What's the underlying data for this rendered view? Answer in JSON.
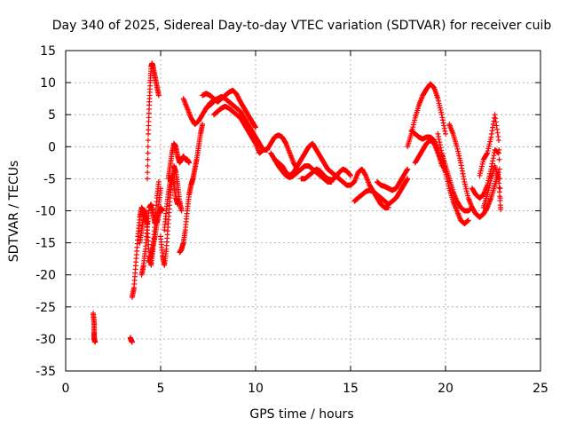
{
  "chart_data": {
    "type": "scatter",
    "title": "Day 340 of 2025, Sidereal Day-to-day VTEC variation (SDTVAR) for receiver cuib",
    "xlabel": "GPS time / hours",
    "ylabel": "SDTVAR / TECUs",
    "xlim": [
      0,
      25
    ],
    "ylim": [
      -35,
      15
    ],
    "xticks": [
      "0",
      "5",
      "10",
      "15",
      "20",
      "25"
    ],
    "yticks": [
      "15",
      "10",
      "5",
      "0",
      "-5",
      "-10",
      "-15",
      "-20",
      "-25",
      "-30",
      "-35"
    ],
    "grid": true,
    "marker": "plus",
    "color": "#ff0000",
    "series": [
      {
        "name": "arc-1",
        "x": [
          1.45,
          1.5,
          1.5,
          1.5,
          1.55
        ],
        "y": [
          -26.0,
          -27.5,
          -29.0,
          -30.0,
          -30.5
        ]
      },
      {
        "name": "arc-2",
        "x": [
          3.4,
          3.45,
          3.5
        ],
        "y": [
          -29.8,
          -30.2,
          -30.5
        ]
      },
      {
        "name": "arc-3",
        "x": [
          3.5,
          3.6,
          3.7,
          3.8,
          3.9,
          4.0,
          4.1,
          4.2,
          4.3
        ],
        "y": [
          -23.5,
          -22.0,
          -18.0,
          -14.0,
          -11.0,
          -9.5,
          -10.0,
          -11.0,
          -12.0
        ]
      },
      {
        "name": "arc-4",
        "x": [
          4.3,
          4.35,
          4.4,
          4.45,
          4.5,
          4.55,
          4.6,
          4.7,
          4.8,
          4.9
        ],
        "y": [
          -5.0,
          2.0,
          6.5,
          10.0,
          12.5,
          13.0,
          12.5,
          11.0,
          9.5,
          8.0
        ]
      },
      {
        "name": "arc-5",
        "x": [
          3.9,
          4.0,
          4.1,
          4.2,
          4.3,
          4.4,
          4.5,
          4.6,
          4.7,
          4.8,
          4.9
        ],
        "y": [
          -15.0,
          -13.0,
          -11.0,
          -10.0,
          -13.0,
          -17.0,
          -18.5,
          -16.0,
          -12.0,
          -8.0,
          -5.5
        ]
      },
      {
        "name": "arc-6",
        "x": [
          4.0,
          4.1,
          4.2,
          4.3,
          4.4,
          4.5,
          4.6,
          4.7,
          4.8,
          4.9,
          5.0
        ],
        "y": [
          -20.0,
          -18.5,
          -16.0,
          -12.5,
          -9.5,
          -9.0,
          -10.5,
          -12.0,
          -11.5,
          -9.0,
          -6.5
        ]
      },
      {
        "name": "arc-7",
        "x": [
          4.4,
          4.5,
          4.6,
          4.7,
          4.8,
          4.9,
          5.0,
          5.1
        ],
        "y": [
          -18.0,
          -17.0,
          -15.5,
          -14.0,
          -12.0,
          -10.5,
          -9.5,
          -10.0
        ]
      },
      {
        "name": "arc-8",
        "x": [
          5.0,
          5.1,
          5.2,
          5.3,
          5.4,
          5.5,
          5.6,
          5.7,
          5.8,
          5.9,
          6.0,
          6.1
        ],
        "y": [
          -14.0,
          -17.0,
          -18.5,
          -16.0,
          -12.0,
          -8.0,
          -5.0,
          -3.0,
          -4.0,
          -6.0,
          -8.5,
          -10.0
        ]
      },
      {
        "name": "arc-9",
        "x": [
          5.2,
          5.3,
          5.4,
          5.5,
          5.6,
          5.7,
          5.8,
          5.9
        ],
        "y": [
          -13.0,
          -10.0,
          -7.5,
          -5.5,
          -4.5,
          -6.0,
          -8.0,
          -9.0
        ]
      },
      {
        "name": "arc-10",
        "x": [
          5.4,
          5.5,
          5.6,
          5.7,
          5.8,
          5.9,
          6.0,
          6.1,
          6.2,
          6.3,
          6.4,
          6.5
        ],
        "y": [
          -5.0,
          -3.0,
          -1.0,
          0.5,
          0.0,
          -1.5,
          -2.5,
          -2.0,
          -1.5,
          -2.0,
          -2.0,
          -2.5
        ]
      },
      {
        "name": "arc-11",
        "x": [
          6.0,
          6.1,
          6.2,
          6.3,
          6.4,
          6.5,
          6.6,
          6.7,
          6.8,
          6.9,
          7.0,
          7.1,
          7.2
        ],
        "y": [
          -16.5,
          -16.0,
          -15.0,
          -13.0,
          -10.0,
          -7.5,
          -6.0,
          -5.0,
          -3.5,
          -2.0,
          0.0,
          2.0,
          3.5
        ]
      },
      {
        "name": "arc-12",
        "x": [
          6.2,
          6.4,
          6.6,
          6.8,
          7.0,
          7.2,
          7.4,
          7.6,
          7.8
        ],
        "y": [
          7.5,
          6.0,
          4.5,
          3.5,
          4.0,
          5.0,
          6.0,
          6.5,
          7.0
        ]
      },
      {
        "name": "arc-13",
        "x": [
          7.2,
          7.4,
          7.6,
          7.8,
          8.0,
          8.2,
          8.4,
          8.6,
          8.8,
          9.0,
          9.2,
          9.4,
          9.6,
          9.8,
          10.0
        ],
        "y": [
          8.0,
          8.3,
          8.0,
          7.5,
          7.0,
          7.5,
          8.0,
          8.5,
          8.8,
          8.2,
          7.0,
          6.0,
          5.0,
          4.0,
          3.0
        ]
      },
      {
        "name": "arc-14",
        "x": [
          7.4,
          7.6,
          7.8,
          8.0,
          8.2,
          8.4,
          8.6,
          8.8,
          9.0,
          9.2,
          9.4,
          9.6,
          9.8,
          10.0,
          10.2,
          10.4
        ],
        "y": [
          6.0,
          6.8,
          7.2,
          7.5,
          7.8,
          7.5,
          7.0,
          6.5,
          6.0,
          5.5,
          4.5,
          3.5,
          2.5,
          1.5,
          0.5,
          -0.5
        ]
      },
      {
        "name": "arc-15",
        "x": [
          7.8,
          8.0,
          8.2,
          8.4,
          8.6,
          8.8,
          9.0,
          9.2,
          9.4,
          9.6,
          9.8,
          10.0,
          10.2
        ],
        "y": [
          5.0,
          5.5,
          6.0,
          6.3,
          6.0,
          5.5,
          5.0,
          4.5,
          3.5,
          2.5,
          1.5,
          0.5,
          -1.0
        ]
      },
      {
        "name": "arc-16",
        "x": [
          10.2,
          10.4,
          10.6,
          10.8,
          11.0,
          11.2,
          11.4,
          11.6,
          11.8,
          12.0,
          12.2
        ],
        "y": [
          -1.0,
          -0.5,
          -0.5,
          0.5,
          1.5,
          1.8,
          1.5,
          0.5,
          -1.0,
          -2.5,
          -3.5
        ]
      },
      {
        "name": "arc-17",
        "x": [
          10.8,
          11.0,
          11.2,
          11.4,
          11.6,
          11.8,
          12.0,
          12.2,
          12.4,
          12.6,
          12.8,
          13.0,
          13.2,
          13.4,
          13.6,
          13.8
        ],
        "y": [
          -1.0,
          -2.0,
          -2.5,
          -3.0,
          -4.0,
          -4.5,
          -4.0,
          -3.0,
          -2.0,
          -1.0,
          0.0,
          0.5,
          -0.5,
          -1.5,
          -2.5,
          -3.5
        ]
      },
      {
        "name": "arc-18",
        "x": [
          11.0,
          11.2,
          11.4,
          11.6,
          11.8,
          12.0,
          12.2,
          12.4,
          12.6,
          12.8,
          13.0,
          13.2,
          13.4,
          13.6,
          13.8,
          14.0
        ],
        "y": [
          -2.0,
          -3.0,
          -3.8,
          -4.5,
          -4.8,
          -4.5,
          -4.0,
          -3.5,
          -3.0,
          -3.0,
          -3.5,
          -4.0,
          -4.5,
          -5.0,
          -5.5,
          -5.5
        ]
      },
      {
        "name": "arc-19",
        "x": [
          12.4,
          12.6,
          12.8,
          13.0,
          13.2,
          13.4,
          13.6,
          13.8,
          14.0,
          14.2,
          14.4,
          14.6,
          14.8,
          15.0
        ],
        "y": [
          -5.0,
          -5.0,
          -4.5,
          -4.0,
          -3.5,
          -3.8,
          -4.5,
          -5.0,
          -5.2,
          -4.8,
          -4.0,
          -3.5,
          -3.8,
          -4.5
        ]
      },
      {
        "name": "arc-20",
        "x": [
          13.8,
          14.0,
          14.2,
          14.4,
          14.6,
          14.8,
          15.0,
          15.2,
          15.4,
          15.6,
          15.8,
          16.0,
          16.2,
          16.4,
          16.6,
          16.8,
          17.0
        ],
        "y": [
          -3.5,
          -4.0,
          -4.5,
          -5.0,
          -5.5,
          -6.0,
          -6.0,
          -5.5,
          -4.0,
          -3.5,
          -4.5,
          -6.0,
          -7.0,
          -8.0,
          -9.0,
          -9.5,
          -9.5
        ]
      },
      {
        "name": "arc-21",
        "x": [
          15.2,
          15.4,
          15.6,
          15.8,
          16.0,
          16.2,
          16.4,
          16.6,
          16.8,
          17.0,
          17.2,
          17.4,
          17.6,
          17.8,
          18.0
        ],
        "y": [
          -8.5,
          -8.0,
          -7.5,
          -7.0,
          -6.8,
          -7.0,
          -7.5,
          -8.0,
          -8.5,
          -9.0,
          -8.5,
          -8.0,
          -7.0,
          -6.0,
          -5.0
        ]
      },
      {
        "name": "arc-22",
        "x": [
          16.4,
          16.6,
          16.8,
          17.0,
          17.2,
          17.4,
          17.6,
          17.8,
          18.0
        ],
        "y": [
          -5.5,
          -6.0,
          -6.2,
          -6.5,
          -6.8,
          -6.5,
          -5.5,
          -4.5,
          -3.5
        ]
      },
      {
        "name": "arc-23",
        "x": [
          18.0,
          18.2,
          18.4,
          18.6,
          18.8,
          19.0,
          19.2,
          19.4,
          19.6,
          19.8,
          20.0
        ],
        "y": [
          0.0,
          2.0,
          4.5,
          6.5,
          8.0,
          9.0,
          9.8,
          9.2,
          7.5,
          5.0,
          2.0
        ]
      },
      {
        "name": "arc-24",
        "x": [
          18.2,
          18.4,
          18.6,
          18.8,
          19.0,
          19.2,
          19.4,
          19.6,
          19.8
        ],
        "y": [
          2.5,
          2.0,
          1.5,
          1.2,
          1.5,
          1.5,
          1.0,
          -0.5,
          -3.0
        ]
      },
      {
        "name": "arc-25",
        "x": [
          18.4,
          18.6,
          18.8,
          19.0,
          19.2,
          19.4,
          19.6,
          19.8,
          20.0
        ],
        "y": [
          -2.5,
          -1.5,
          -0.5,
          0.5,
          1.0,
          0.5,
          -1.0,
          -2.5,
          -4.0
        ]
      },
      {
        "name": "arc-26",
        "x": [
          19.6,
          19.8,
          20.0,
          20.2,
          20.4,
          20.6,
          20.8,
          21.0,
          21.2
        ],
        "y": [
          2.0,
          -1.0,
          -4.0,
          -6.5,
          -8.5,
          -10.0,
          -11.5,
          -12.0,
          -11.5
        ]
      },
      {
        "name": "arc-27",
        "x": [
          19.8,
          20.0,
          20.2,
          20.4,
          20.6,
          20.8,
          21.0,
          21.2,
          21.4
        ],
        "y": [
          -1.0,
          -3.0,
          -5.0,
          -7.0,
          -8.5,
          -9.5,
          -10.0,
          -10.0,
          -9.5
        ]
      },
      {
        "name": "arc-28",
        "x": [
          20.2,
          20.4,
          20.6,
          20.8,
          21.0,
          21.2,
          21.4,
          21.6,
          21.8,
          22.0,
          22.2,
          22.4,
          22.6,
          22.8
        ],
        "y": [
          3.5,
          2.0,
          0.0,
          -2.5,
          -5.5,
          -8.0,
          -9.5,
          -10.5,
          -11.0,
          -10.5,
          -9.5,
          -8.0,
          -6.0,
          -4.0
        ]
      },
      {
        "name": "arc-29",
        "x": [
          21.4,
          21.6,
          21.8,
          22.0,
          22.2,
          22.4,
          22.6,
          22.8
        ],
        "y": [
          -6.5,
          -7.5,
          -8.0,
          -7.5,
          -6.0,
          -3.5,
          -0.5,
          -1.0
        ]
      },
      {
        "name": "arc-30",
        "x": [
          21.8,
          22.0,
          22.2,
          22.4,
          22.6,
          22.8,
          22.9
        ],
        "y": [
          -4.5,
          -2.0,
          -1.0,
          1.5,
          5.0,
          1.0,
          -9.5
        ]
      },
      {
        "name": "arc-31",
        "x": [
          22.0,
          22.2,
          22.4,
          22.6,
          22.8,
          22.9
        ],
        "y": [
          -9.5,
          -7.5,
          -5.0,
          -3.0,
          -5.0,
          -9.8
        ]
      }
    ]
  }
}
